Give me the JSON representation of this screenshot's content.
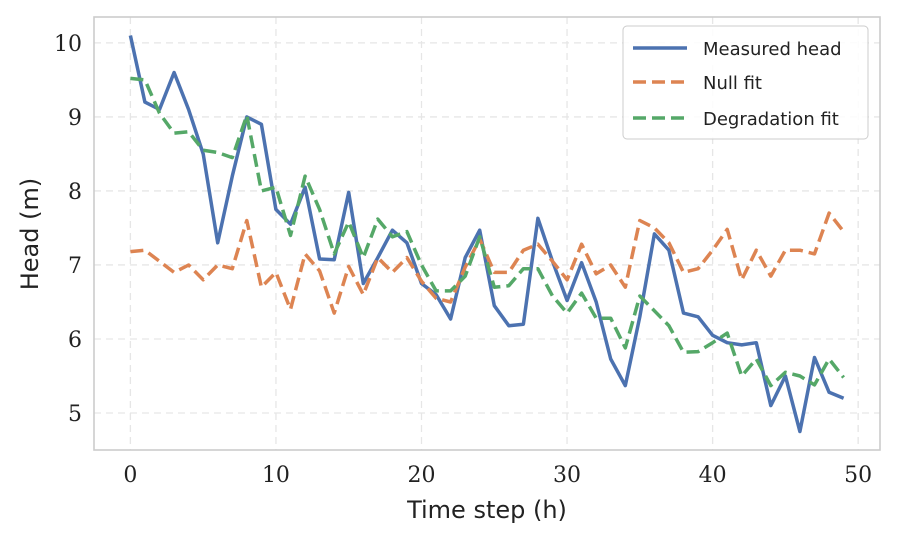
{
  "chart_data": {
    "type": "line",
    "title": "",
    "xlabel": "Time step (h)",
    "ylabel": "Head (m)",
    "xlim": [
      -2.5,
      51.5
    ],
    "ylim": [
      4.5,
      10.35
    ],
    "xticks": [
      0,
      10,
      20,
      30,
      40,
      50
    ],
    "yticks": [
      5,
      6,
      7,
      8,
      9,
      10
    ],
    "grid": true,
    "legend_position": "top-right",
    "x": [
      0,
      1,
      2,
      3,
      4,
      5,
      6,
      7,
      8,
      9,
      10,
      11,
      12,
      13,
      14,
      15,
      16,
      17,
      18,
      19,
      20,
      21,
      22,
      23,
      24,
      25,
      26,
      27,
      28,
      29,
      30,
      31,
      32,
      33,
      34,
      35,
      36,
      37,
      38,
      39,
      40,
      41,
      42,
      43,
      44,
      45,
      46,
      47,
      48,
      49
    ],
    "series": [
      {
        "name": "Measured head",
        "color": "#4C72B0",
        "style": "solid",
        "values": [
          10.1,
          9.2,
          9.1,
          9.6,
          9.1,
          8.5,
          7.3,
          8.2,
          9.0,
          8.9,
          7.75,
          7.55,
          8.05,
          7.08,
          7.07,
          7.98,
          6.75,
          7.1,
          7.47,
          7.3,
          6.75,
          6.6,
          6.27,
          7.1,
          7.47,
          6.45,
          6.18,
          6.2,
          7.63,
          7.05,
          6.52,
          7.03,
          6.5,
          5.73,
          5.37,
          6.3,
          7.42,
          7.2,
          6.35,
          6.3,
          6.05,
          5.95,
          5.92,
          5.95,
          5.1,
          5.5,
          4.75,
          5.75,
          5.28,
          5.2
        ]
      },
      {
        "name": "Null fit",
        "color": "#DD8452",
        "style": "dashed",
        "values": [
          7.18,
          7.2,
          7.05,
          6.9,
          7.0,
          6.8,
          7.0,
          6.95,
          7.6,
          6.7,
          6.9,
          6.4,
          7.15,
          6.92,
          6.35,
          6.98,
          6.6,
          7.1,
          6.9,
          7.1,
          6.78,
          6.55,
          6.5,
          6.97,
          7.35,
          6.9,
          6.9,
          7.2,
          7.28,
          7.05,
          6.8,
          7.28,
          6.88,
          7.0,
          6.7,
          7.6,
          7.5,
          7.3,
          6.9,
          6.95,
          7.2,
          7.48,
          6.8,
          7.2,
          6.85,
          7.2,
          7.2,
          7.15,
          7.7,
          7.45
        ]
      },
      {
        "name": "Degradation fit",
        "color": "#55A868",
        "style": "dashed",
        "values": [
          9.52,
          9.5,
          9.05,
          8.78,
          8.8,
          8.55,
          8.52,
          8.45,
          9.02,
          8.0,
          8.05,
          7.4,
          8.2,
          7.75,
          7.15,
          7.58,
          7.1,
          7.62,
          7.38,
          7.45,
          7.0,
          6.65,
          6.65,
          6.85,
          7.38,
          6.7,
          6.72,
          6.95,
          6.95,
          6.58,
          6.35,
          6.62,
          6.28,
          6.28,
          5.88,
          6.58,
          6.38,
          6.18,
          5.82,
          5.83,
          5.95,
          6.08,
          5.5,
          5.73,
          5.37,
          5.55,
          5.5,
          5.38,
          5.73,
          5.48
        ]
      }
    ]
  }
}
